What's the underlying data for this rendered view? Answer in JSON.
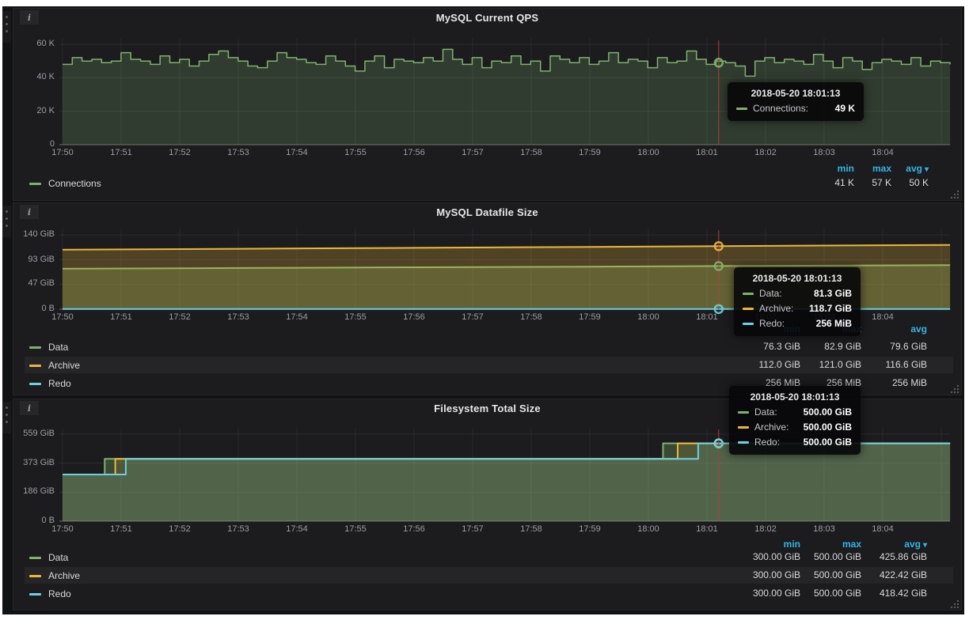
{
  "dashboard": {
    "crosshair_time": "2018-05-20 18:01:13",
    "theme": {
      "green": "#7eb26d",
      "orange": "#eab839",
      "blue": "#6ed0e0",
      "crosshair_red": "#b23d3d",
      "legend_header_blue": "#33b5e5"
    }
  },
  "chart_data": [
    {
      "type": "line",
      "title": "MySQL Current QPS",
      "unit": "K",
      "ylim": [
        0,
        60
      ],
      "y_ticks": [
        {
          "label": "60 K",
          "value": 60
        },
        {
          "label": "40 K",
          "value": 40
        },
        {
          "label": "20 K",
          "value": 20
        },
        {
          "label": "0",
          "value": 0
        }
      ],
      "x_range_minutes": [
        0,
        15.15
      ],
      "x_ticks": [
        "17:50",
        "17:51",
        "17:52",
        "17:53",
        "17:54",
        "17:55",
        "17:56",
        "17:57",
        "17:58",
        "17:59",
        "18:00",
        "18:01",
        "18:02",
        "18:03",
        "18:04"
      ],
      "grid": true,
      "legend_headers": [
        "min",
        "max",
        "avg"
      ],
      "avg_caret": true,
      "crosshair": {
        "time": "2018-05-20 18:01:13",
        "t_minutes": 11.2
      },
      "series": [
        {
          "name": "Connections",
          "color": "#7eb26d",
          "fill_opacity": 0.22,
          "step": true,
          "values": [
            48,
            52,
            50,
            51,
            49,
            50,
            55,
            51,
            50,
            48,
            53,
            49,
            51,
            47,
            50,
            54,
            56,
            52,
            50,
            47,
            46,
            50,
            55,
            52,
            51,
            49,
            48,
            53,
            50,
            47,
            44,
            50,
            53,
            46,
            51,
            50,
            49,
            52,
            50,
            57,
            51,
            48,
            52,
            46,
            50,
            49,
            53,
            48,
            50,
            44,
            53,
            51,
            49,
            52,
            48,
            50,
            55,
            49,
            51,
            50,
            46,
            52,
            49,
            50,
            56,
            51,
            48,
            50,
            49,
            47,
            41,
            50,
            52,
            49,
            51,
            50,
            48,
            54,
            50,
            46,
            52,
            50,
            45,
            49,
            51,
            50,
            48,
            52,
            47,
            50,
            49,
            48
          ],
          "crosshair_value": 49,
          "min": "41 K",
          "max": "57 K",
          "avg": "50 K"
        }
      ],
      "tooltip": {
        "time": "2018-05-20 18:01:13",
        "rows": [
          {
            "label": "Connections:",
            "value": "49 K",
            "color": "#7eb26d"
          }
        ]
      }
    },
    {
      "type": "area",
      "title": "MySQL Datafile Size",
      "unit": "GiB",
      "ylim": [
        0,
        140
      ],
      "y_ticks": [
        {
          "label": "140 GiB",
          "value": 140
        },
        {
          "label": "93 GiB",
          "value": 93
        },
        {
          "label": "47 GiB",
          "value": 47
        },
        {
          "label": "0 B",
          "value": 0
        }
      ],
      "x_range_minutes": [
        0,
        15.15
      ],
      "x_ticks": [
        "17:50",
        "17:51",
        "17:52",
        "17:53",
        "17:54",
        "17:55",
        "17:56",
        "17:57",
        "17:58",
        "17:59",
        "18:00",
        "18:01",
        "18:02",
        "18:03",
        "18:04"
      ],
      "grid": true,
      "legend_headers": [
        "min",
        "max",
        "avg"
      ],
      "avg_caret": false,
      "crosshair": {
        "time": "2018-05-20 18:01:13",
        "t_minutes": 11.2
      },
      "series": [
        {
          "name": "Data",
          "color": "#7eb26d",
          "fill_opacity": 0.28,
          "points": [
            [
              0,
              76.3
            ],
            [
              3,
              77.6
            ],
            [
              6,
              78.9
            ],
            [
              9,
              80.2
            ],
            [
              11.2,
              81.3
            ],
            [
              13,
              82.1
            ],
            [
              15.15,
              82.9
            ]
          ],
          "crosshair_value": 81.3,
          "min": "76.3 GiB",
          "max": "82.9 GiB",
          "avg": "79.6 GiB"
        },
        {
          "name": "Archive",
          "color": "#eab839",
          "fill_opacity": 0.25,
          "points": [
            [
              0,
              112.0
            ],
            [
              3,
              113.8
            ],
            [
              6,
              115.6
            ],
            [
              9,
              117.3
            ],
            [
              11.2,
              118.7
            ],
            [
              13,
              119.9
            ],
            [
              15.15,
              121.0
            ]
          ],
          "crosshair_value": 118.7,
          "min": "112.0 GiB",
          "max": "121.0 GiB",
          "avg": "116.6 GiB"
        },
        {
          "name": "Redo",
          "color": "#6ed0e0",
          "fill_opacity": 0.3,
          "points": [
            [
              0,
              0.25
            ],
            [
              15.15,
              0.25
            ]
          ],
          "crosshair_value": 0.25,
          "min": "256 MiB",
          "max": "256 MiB",
          "avg": "256 MiB"
        }
      ],
      "tooltip": {
        "time": "2018-05-20 18:01:13",
        "rows": [
          {
            "label": "Data:",
            "value": "81.3 GiB",
            "color": "#7eb26d"
          },
          {
            "label": "Archive:",
            "value": "118.7 GiB",
            "color": "#eab839"
          },
          {
            "label": "Redo:",
            "value": "256 MiB",
            "color": "#6ed0e0"
          }
        ]
      }
    },
    {
      "type": "area",
      "title": "Filesystem Total Size",
      "unit": "GiB",
      "ylim": [
        0,
        559
      ],
      "y_ticks": [
        {
          "label": "559 GiB",
          "value": 559
        },
        {
          "label": "373 GiB",
          "value": 373
        },
        {
          "label": "186 GiB",
          "value": 186
        },
        {
          "label": "0 B",
          "value": 0
        }
      ],
      "x_range_minutes": [
        0,
        15.15
      ],
      "x_ticks": [
        "17:50",
        "17:51",
        "17:52",
        "17:53",
        "17:54",
        "17:55",
        "17:56",
        "17:57",
        "17:58",
        "17:59",
        "18:00",
        "18:01",
        "18:02",
        "18:03",
        "18:04"
      ],
      "grid": true,
      "legend_headers": [
        "min",
        "max",
        "avg"
      ],
      "avg_caret": true,
      "crosshair": {
        "time": "2018-05-20 18:01:13",
        "t_minutes": 11.2
      },
      "series": [
        {
          "name": "Data",
          "color": "#7eb26d",
          "fill_opacity": 0.3,
          "points": [
            [
              0,
              300
            ],
            [
              0.72,
              300
            ],
            [
              0.72,
              400
            ],
            [
              10.25,
              400
            ],
            [
              10.25,
              500
            ],
            [
              15.15,
              500
            ]
          ],
          "crosshair_value": 500,
          "min": "300.00 GiB",
          "max": "500.00 GiB",
          "avg": "425.86 GiB"
        },
        {
          "name": "Archive",
          "color": "#eab839",
          "fill_opacity": 0.12,
          "points": [
            [
              0,
              300
            ],
            [
              0.9,
              300
            ],
            [
              0.9,
              400
            ],
            [
              10.5,
              400
            ],
            [
              10.5,
              500
            ],
            [
              15.15,
              500
            ]
          ],
          "crosshair_value": 500,
          "min": "300.00 GiB",
          "max": "500.00 GiB",
          "avg": "422.42 GiB"
        },
        {
          "name": "Redo",
          "color": "#6ed0e0",
          "fill_opacity": 0.12,
          "points": [
            [
              0,
              300
            ],
            [
              1.08,
              300
            ],
            [
              1.08,
              400
            ],
            [
              10.85,
              400
            ],
            [
              10.85,
              500
            ],
            [
              15.15,
              500
            ]
          ],
          "crosshair_value": 500,
          "min": "300.00 GiB",
          "max": "500.00 GiB",
          "avg": "418.42 GiB"
        }
      ],
      "tooltip": {
        "time": "2018-05-20 18:01:13",
        "rows": [
          {
            "label": "Data:",
            "value": "500.00 GiB",
            "color": "#7eb26d"
          },
          {
            "label": "Archive:",
            "value": "500.00 GiB",
            "color": "#eab839"
          },
          {
            "label": "Redo:",
            "value": "500.00 GiB",
            "color": "#6ed0e0"
          }
        ]
      }
    }
  ]
}
